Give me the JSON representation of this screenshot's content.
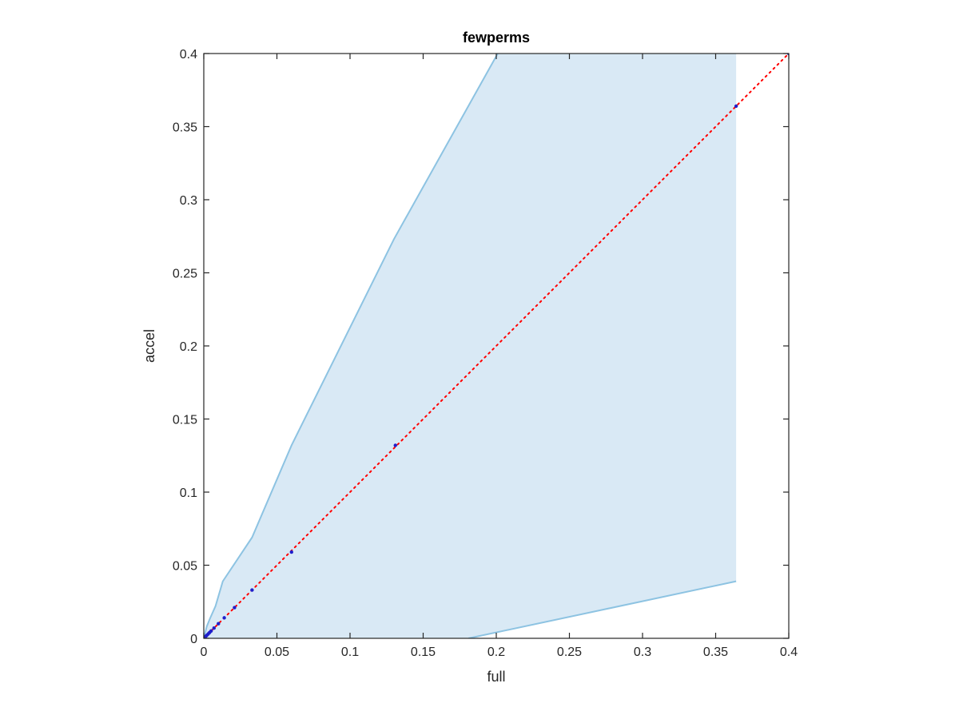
{
  "chart_data": {
    "type": "scatter",
    "title": "fewperms",
    "xlabel": "full",
    "ylabel": "accel",
    "xlim": [
      0,
      0.4
    ],
    "ylim": [
      0,
      0.4
    ],
    "xticks": [
      0,
      0.05,
      0.1,
      0.15,
      0.2,
      0.25,
      0.3,
      0.35,
      0.4
    ],
    "yticks": [
      0,
      0.05,
      0.1,
      0.15,
      0.2,
      0.25,
      0.3,
      0.35,
      0.4
    ],
    "xtick_labels": [
      "0",
      "0.05",
      "0.1",
      "0.15",
      "0.2",
      "0.25",
      "0.3",
      "0.35",
      "0.4"
    ],
    "ytick_labels": [
      "0",
      "0.05",
      "0.1",
      "0.15",
      "0.2",
      "0.25",
      "0.3",
      "0.35",
      "0.4"
    ],
    "grid": false,
    "colors": {
      "band_fill": "#d9e9f5",
      "band_edge": "#8dc3e2",
      "points": "#1f1fcc",
      "diagonal": "#ff0000",
      "axes": "#262626"
    },
    "band_upper": [
      [
        0,
        0
      ],
      [
        0.002,
        0.008
      ],
      [
        0.004,
        0.013
      ],
      [
        0.008,
        0.022
      ],
      [
        0.013,
        0.039
      ],
      [
        0.033,
        0.069
      ],
      [
        0.06,
        0.132
      ],
      [
        0.13,
        0.273
      ],
      [
        0.201,
        0.4
      ]
    ],
    "band_right": [
      [
        0.364,
        0.4
      ],
      [
        0.364,
        0.039
      ]
    ],
    "band_lower": [
      [
        0.364,
        0.039
      ],
      [
        0.181,
        0
      ]
    ],
    "points": [
      [
        0.0005,
        0.0005
      ],
      [
        0.001,
        0.001
      ],
      [
        0.0015,
        0.0015
      ],
      [
        0.002,
        0.002
      ],
      [
        0.003,
        0.003
      ],
      [
        0.004,
        0.004
      ],
      [
        0.005,
        0.005
      ],
      [
        0.007,
        0.007
      ],
      [
        0.01,
        0.01
      ],
      [
        0.014,
        0.014
      ],
      [
        0.021,
        0.021
      ],
      [
        0.033,
        0.033
      ],
      [
        0.06,
        0.059
      ],
      [
        0.131,
        0.132
      ],
      [
        0.364,
        0.364
      ],
      [
        0.4,
        0.4
      ]
    ],
    "diagonal": [
      [
        0,
        0
      ],
      [
        0.4,
        0.4
      ]
    ]
  }
}
